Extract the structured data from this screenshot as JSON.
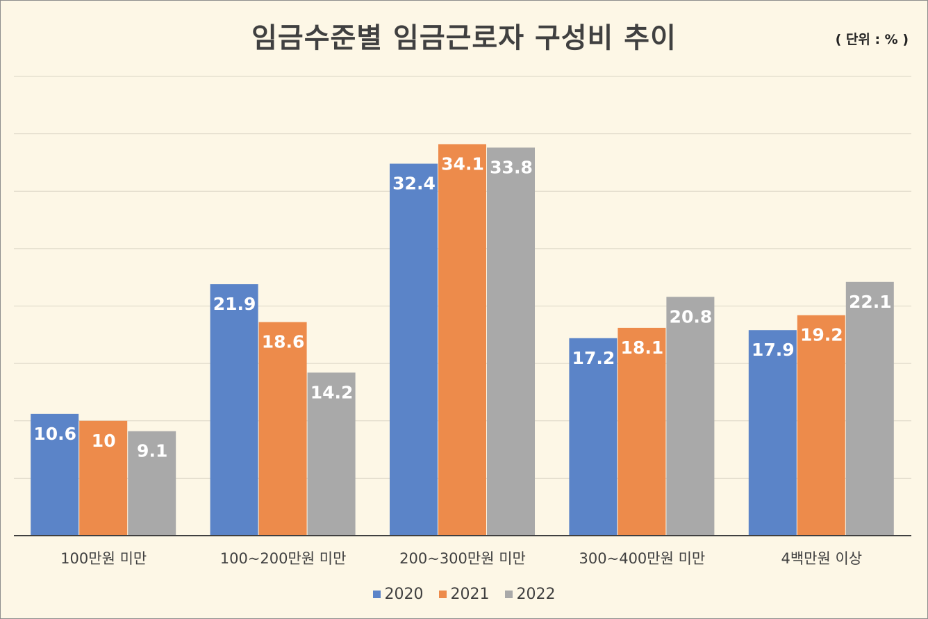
{
  "title": "임금수준별 임금근로자 구성비 추이",
  "unit_note": "( 단위 : % )",
  "chart_data": {
    "type": "bar",
    "categories": [
      "100만원 미만",
      "100~200만원 미만",
      "200~300만원 미만",
      "300~400만원 미만",
      "4백만원 이상"
    ],
    "series": [
      {
        "name": "2020",
        "color": "#5b84c8",
        "values": [
          10.6,
          21.9,
          32.4,
          17.2,
          17.9
        ]
      },
      {
        "name": "2021",
        "color": "#ed8b4b",
        "values": [
          10,
          18.6,
          34.1,
          18.1,
          19.2
        ]
      },
      {
        "name": "2022",
        "color": "#a9a9a9",
        "values": [
          9.1,
          14.2,
          33.8,
          20.8,
          22.1
        ]
      }
    ],
    "ylim": [
      0,
      40
    ],
    "grid": true,
    "legend": "bottom",
    "xlabel": "",
    "ylabel": ""
  }
}
